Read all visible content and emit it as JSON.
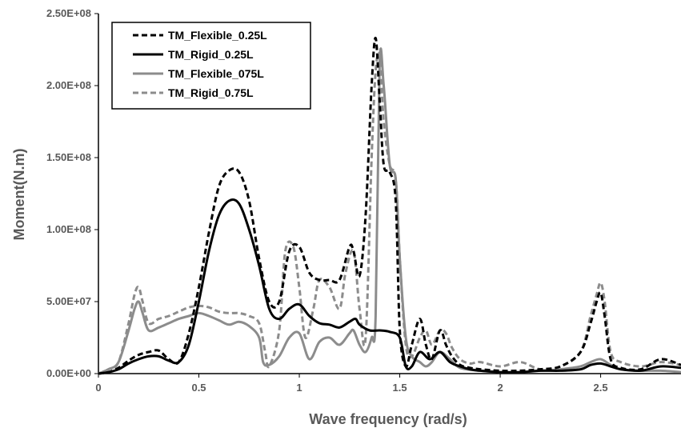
{
  "chart_data": {
    "type": "line",
    "title": "",
    "xlabel": "Wave frequency (rad/s)",
    "ylabel": "Moment(N.m)",
    "xlim": [
      0,
      2.9
    ],
    "ylim": [
      0,
      250000000
    ],
    "x_ticks": [
      0,
      0.5,
      1,
      1.5,
      2,
      2.5
    ],
    "x_tick_labels": [
      "0",
      "0.5",
      "1",
      "1.5",
      "2",
      "2.5"
    ],
    "y_ticks": [
      0,
      50000000,
      100000000,
      150000000,
      200000000,
      250000000
    ],
    "y_tick_labels": [
      "0.00E+00",
      "5.00E+07",
      "1.00E+08",
      "1.50E+08",
      "2.00E+08",
      "2.50E+08"
    ],
    "grid": false,
    "legend_position": "top-left",
    "series": [
      {
        "name": "TM_Flexible_0.25L",
        "color": "#000000",
        "dash": "dashed",
        "x": [
          0,
          0.05,
          0.1,
          0.15,
          0.2,
          0.25,
          0.3,
          0.35,
          0.4,
          0.45,
          0.5,
          0.55,
          0.6,
          0.65,
          0.7,
          0.75,
          0.8,
          0.85,
          0.9,
          0.95,
          1.0,
          1.05,
          1.1,
          1.15,
          1.2,
          1.25,
          1.27,
          1.3,
          1.33,
          1.36,
          1.38,
          1.4,
          1.42,
          1.45,
          1.48,
          1.5,
          1.53,
          1.56,
          1.6,
          1.63,
          1.66,
          1.7,
          1.73,
          1.76,
          1.8,
          1.85,
          1.9,
          2.0,
          2.1,
          2.2,
          2.3,
          2.4,
          2.45,
          2.48,
          2.5,
          2.52,
          2.55,
          2.6,
          2.7,
          2.8,
          2.9
        ],
        "y": [
          0,
          1000000,
          4000000,
          9000000,
          13000000,
          15000000,
          16000000,
          10000000,
          8000000,
          28000000,
          60000000,
          98000000,
          130000000,
          141000000,
          140000000,
          120000000,
          80000000,
          50000000,
          50000000,
          85000000,
          88000000,
          70000000,
          65000000,
          65000000,
          65000000,
          88000000,
          85000000,
          68000000,
          110000000,
          200000000,
          233000000,
          190000000,
          145000000,
          140000000,
          120000000,
          30000000,
          5000000,
          20000000,
          38000000,
          20000000,
          10000000,
          30000000,
          20000000,
          12000000,
          6000000,
          4000000,
          3000000,
          2000000,
          2000000,
          3000000,
          5000000,
          15000000,
          35000000,
          50000000,
          56000000,
          40000000,
          10000000,
          4000000,
          3000000,
          10000000,
          6000000
        ]
      },
      {
        "name": "TM_Rigid_0.25L",
        "color": "#000000",
        "dash": "solid",
        "x": [
          0,
          0.05,
          0.1,
          0.15,
          0.2,
          0.25,
          0.3,
          0.35,
          0.4,
          0.45,
          0.5,
          0.55,
          0.6,
          0.65,
          0.7,
          0.75,
          0.8,
          0.85,
          0.9,
          0.95,
          1.0,
          1.05,
          1.1,
          1.15,
          1.2,
          1.25,
          1.28,
          1.3,
          1.35,
          1.4,
          1.45,
          1.5,
          1.53,
          1.56,
          1.6,
          1.65,
          1.7,
          1.75,
          1.8,
          1.85,
          1.9,
          2.0,
          2.1,
          2.2,
          2.3,
          2.4,
          2.45,
          2.5,
          2.55,
          2.6,
          2.7,
          2.8,
          2.9
        ],
        "y": [
          0,
          1000000,
          3000000,
          7000000,
          10000000,
          12000000,
          12000000,
          9000000,
          8000000,
          20000000,
          50000000,
          85000000,
          110000000,
          120000000,
          118000000,
          100000000,
          75000000,
          45000000,
          38000000,
          45000000,
          48000000,
          40000000,
          35000000,
          34000000,
          32000000,
          36000000,
          38000000,
          34000000,
          30000000,
          30000000,
          29000000,
          25000000,
          5000000,
          5000000,
          15000000,
          10000000,
          15000000,
          8000000,
          5000000,
          3000000,
          2000000,
          1000000,
          1000000,
          2000000,
          2000000,
          3000000,
          6000000,
          7000000,
          5000000,
          3000000,
          2000000,
          5000000,
          4000000
        ]
      },
      {
        "name": "TM_Flexible_075L",
        "color": "#8c8c8c",
        "dash": "solid",
        "x": [
          0,
          0.05,
          0.1,
          0.15,
          0.18,
          0.2,
          0.22,
          0.25,
          0.3,
          0.35,
          0.4,
          0.45,
          0.5,
          0.55,
          0.6,
          0.65,
          0.7,
          0.75,
          0.8,
          0.82,
          0.85,
          0.9,
          0.95,
          1.0,
          1.05,
          1.1,
          1.15,
          1.2,
          1.25,
          1.27,
          1.3,
          1.33,
          1.36,
          1.38,
          1.4,
          1.42,
          1.45,
          1.48,
          1.5,
          1.53,
          1.56,
          1.6,
          1.63,
          1.66,
          1.7,
          1.75,
          1.8,
          1.9,
          2.0,
          2.1,
          2.2,
          2.3,
          2.4,
          2.45,
          2.5,
          2.55,
          2.6,
          2.7,
          2.8,
          2.9
        ],
        "y": [
          0,
          3000000,
          8000000,
          30000000,
          45000000,
          50000000,
          42000000,
          30000000,
          32000000,
          35000000,
          38000000,
          40000000,
          42000000,
          40000000,
          37000000,
          34000000,
          36000000,
          33000000,
          25000000,
          8000000,
          6000000,
          12000000,
          25000000,
          28000000,
          10000000,
          22000000,
          25000000,
          20000000,
          28000000,
          30000000,
          20000000,
          15000000,
          25000000,
          40000000,
          215000000,
          200000000,
          145000000,
          135000000,
          80000000,
          25000000,
          12000000,
          8000000,
          5000000,
          8000000,
          15000000,
          10000000,
          4000000,
          2000000,
          1000000,
          1000000,
          2000000,
          3000000,
          5000000,
          8000000,
          10000000,
          6000000,
          3000000,
          2000000,
          2000000,
          1000000
        ]
      },
      {
        "name": "TM_Rigid_0.75L",
        "color": "#8c8c8c",
        "dash": "dashed",
        "x": [
          0,
          0.05,
          0.1,
          0.15,
          0.18,
          0.2,
          0.22,
          0.25,
          0.3,
          0.35,
          0.4,
          0.45,
          0.5,
          0.55,
          0.6,
          0.65,
          0.7,
          0.75,
          0.8,
          0.83,
          0.85,
          0.9,
          0.93,
          0.97,
          1.0,
          1.03,
          1.07,
          1.1,
          1.15,
          1.2,
          1.23,
          1.27,
          1.3,
          1.33,
          1.36,
          1.38,
          1.4,
          1.42,
          1.45,
          1.48,
          1.5,
          1.53,
          1.56,
          1.6,
          1.63,
          1.66,
          1.7,
          1.73,
          1.76,
          1.8,
          1.85,
          1.9,
          2.0,
          2.1,
          2.2,
          2.3,
          2.4,
          2.45,
          2.48,
          2.5,
          2.52,
          2.55,
          2.6,
          2.7,
          2.8,
          2.9
        ],
        "y": [
          0,
          3000000,
          8000000,
          35000000,
          55000000,
          60000000,
          50000000,
          35000000,
          38000000,
          40000000,
          43000000,
          46000000,
          47000000,
          46000000,
          43000000,
          42000000,
          42000000,
          40000000,
          35000000,
          15000000,
          5000000,
          30000000,
          85000000,
          88000000,
          60000000,
          25000000,
          45000000,
          65000000,
          60000000,
          45000000,
          70000000,
          85000000,
          45000000,
          25000000,
          150000000,
          210000000,
          220000000,
          175000000,
          145000000,
          135000000,
          80000000,
          20000000,
          12000000,
          25000000,
          30000000,
          20000000,
          30000000,
          28000000,
          18000000,
          10000000,
          7000000,
          8000000,
          5000000,
          8000000,
          3000000,
          5000000,
          15000000,
          40000000,
          55000000,
          63000000,
          50000000,
          15000000,
          8000000,
          5000000,
          8000000,
          6000000
        ]
      }
    ]
  }
}
